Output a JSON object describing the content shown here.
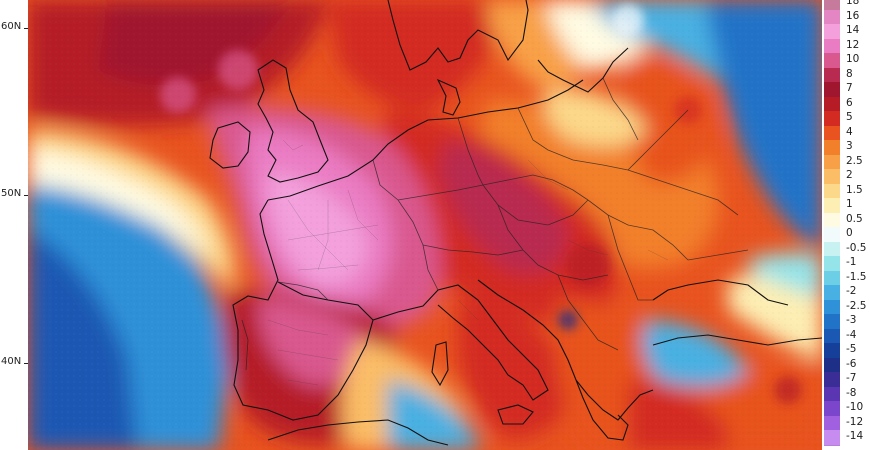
{
  "latitude_labels": [
    "60N",
    "50N",
    "40N"
  ],
  "legend": [
    {
      "value": "18",
      "color": "#c67a9c"
    },
    {
      "value": "16",
      "color": "#e486c4"
    },
    {
      "value": "14",
      "color": "#f3a0dc"
    },
    {
      "value": "12",
      "color": "#ea7cc3"
    },
    {
      "value": "10",
      "color": "#d9588e"
    },
    {
      "value": "8",
      "color": "#b82a4f"
    },
    {
      "value": "7",
      "color": "#a0162e"
    },
    {
      "value": "6",
      "color": "#b51c26"
    },
    {
      "value": "5",
      "color": "#d32a21"
    },
    {
      "value": "4",
      "color": "#e8531f"
    },
    {
      "value": "3",
      "color": "#f27f2a"
    },
    {
      "value": "2.5",
      "color": "#f8a047"
    },
    {
      "value": "2",
      "color": "#fbbd66"
    },
    {
      "value": "1.5",
      "color": "#fcd88a"
    },
    {
      "value": "1",
      "color": "#fdeeb3"
    },
    {
      "value": "0.5",
      "color": "#fffbe3"
    },
    {
      "value": "0",
      "color": "#f2fbfb"
    },
    {
      "value": "-0.5",
      "color": "#c8f2f2"
    },
    {
      "value": "-1",
      "color": "#94e4ea"
    },
    {
      "value": "-1.5",
      "color": "#6ccfe6"
    },
    {
      "value": "-2",
      "color": "#48b0e2"
    },
    {
      "value": "-2.5",
      "color": "#2f91d8"
    },
    {
      "value": "-3",
      "color": "#2173c8"
    },
    {
      "value": "-4",
      "color": "#1a58b3"
    },
    {
      "value": "-5",
      "color": "#163f99"
    },
    {
      "value": "-6",
      "color": "#1d2f86"
    },
    {
      "value": "-7",
      "color": "#3b2d96"
    },
    {
      "value": "-8",
      "color": "#5a36b2"
    },
    {
      "value": "-10",
      "color": "#7b46cc"
    },
    {
      "value": "-12",
      "color": "#a060e0"
    },
    {
      "value": "-14",
      "color": "#c68cf0"
    }
  ]
}
